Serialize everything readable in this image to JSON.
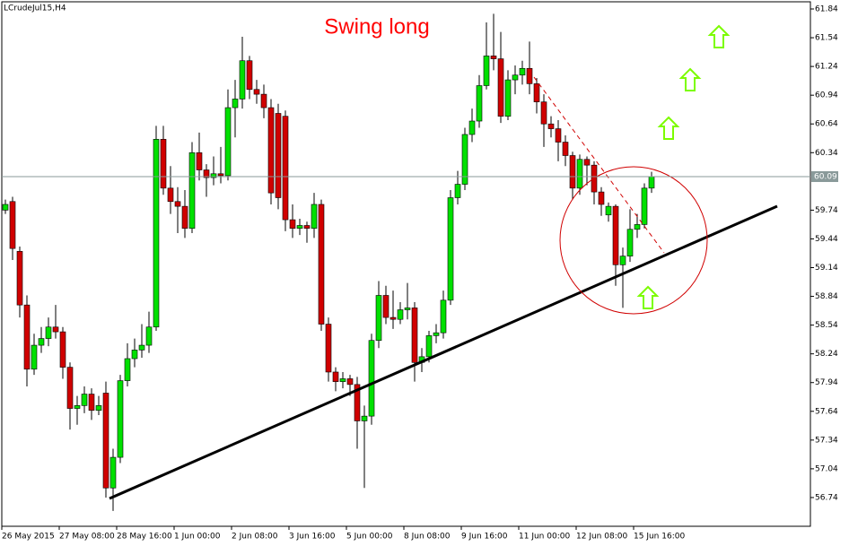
{
  "chart_data": {
    "type": "candlestick",
    "symbol": "LCrudeJul15,H4",
    "title": "Swing long",
    "categories": [
      "26 May 2015",
      null,
      null,
      null,
      null,
      null,
      null,
      null,
      "27 May 08:00",
      null,
      null,
      null,
      null,
      null,
      null,
      null,
      "28 May 16:00",
      null,
      null,
      null,
      null,
      null,
      null,
      null,
      "1 Jun 00:00",
      null,
      null,
      null,
      null,
      null,
      null,
      null,
      "2 Jun 08:00",
      null,
      null,
      null,
      null,
      null,
      null,
      null,
      "3 Jun 16:00",
      null,
      null,
      null,
      null,
      null,
      null,
      null,
      "5 Jun 00:00",
      null,
      null,
      null,
      null,
      null,
      null,
      null,
      "8 Jun 08:00",
      null,
      null,
      null,
      null,
      null,
      null,
      null,
      "9 Jun 16:00",
      null,
      null,
      null,
      null,
      null,
      null,
      null,
      "11 Jun 00:00",
      null,
      null,
      null,
      null,
      null,
      null,
      null,
      "12 Jun 08:00",
      null,
      null,
      null,
      null,
      null,
      null,
      null,
      "15 Jun 16:00",
      null,
      null
    ],
    "open": [
      59.74,
      59.83,
      59.31,
      58.75,
      58.08,
      58.33,
      58.4,
      58.52,
      58.47,
      58.1,
      57.67,
      57.7,
      57.82,
      57.65,
      57.83,
      56.84,
      57.16,
      57.96,
      58.19,
      58.28,
      58.33,
      58.52,
      60.48,
      59.97,
      59.83,
      59.78,
      59.55,
      60.34,
      60.16,
      60.08,
      60.12,
      60.1,
      60.81,
      60.9,
      61.3,
      61.0,
      60.95,
      60.81,
      60.75,
      60.72,
      59.64,
      59.55,
      59.58,
      59.55,
      59.8,
      58.55,
      58.05,
      57.95,
      57.98,
      57.92,
      57.54,
      57.59,
      58.38,
      58.85,
      58.62,
      58.6,
      58.7,
      58.72,
      58.15,
      58.21,
      58.43,
      58.46,
      58.8,
      59.87,
      60.01,
      60.53,
      60.67,
      61.04,
      61.35,
      61.32,
      60.72,
      61.1,
      61.15,
      61.22,
      61.06,
      60.87,
      60.64,
      60.59,
      60.45,
      60.31,
      59.97,
      60.27,
      60.21,
      59.93,
      59.69,
      59.78,
      59.17,
      59.26,
      59.54,
      59.59,
      59.97
    ],
    "high": [
      59.85,
      59.88,
      59.36,
      58.85,
      58.45,
      58.52,
      58.62,
      58.75,
      58.52,
      58.15,
      57.8,
      57.9,
      57.88,
      57.8,
      57.95,
      57.25,
      58.02,
      58.35,
      58.4,
      58.55,
      58.68,
      60.62,
      60.62,
      60.2,
      59.98,
      59.95,
      60.45,
      60.55,
      60.22,
      60.3,
      60.4,
      61.0,
      61.1,
      61.55,
      61.35,
      61.1,
      61.05,
      60.9,
      60.85,
      60.78,
      59.8,
      59.65,
      59.62,
      59.92,
      59.85,
      58.62,
      58.1,
      58.05,
      58.02,
      58.0,
      57.7,
      58.45,
      59.0,
      58.95,
      58.9,
      58.78,
      58.98,
      58.78,
      58.3,
      58.48,
      58.55,
      58.9,
      59.95,
      60.15,
      60.6,
      60.8,
      61.15,
      61.7,
      61.79,
      61.6,
      61.2,
      61.25,
      61.3,
      61.5,
      61.12,
      60.95,
      60.72,
      60.68,
      60.52,
      60.35,
      60.32,
      60.3,
      60.25,
      59.98,
      59.82,
      59.8,
      59.35,
      59.75,
      59.7,
      60.02,
      60.14
    ],
    "low": [
      59.7,
      59.22,
      58.62,
      57.9,
      58.02,
      58.25,
      58.32,
      58.4,
      57.98,
      57.45,
      57.5,
      57.62,
      57.55,
      57.6,
      56.74,
      56.6,
      57.1,
      57.9,
      58.1,
      58.2,
      58.25,
      58.48,
      59.9,
      59.7,
      59.5,
      59.45,
      59.5,
      60.05,
      59.88,
      60.0,
      60.02,
      60.05,
      60.5,
      60.8,
      60.9,
      60.85,
      60.7,
      59.8,
      59.75,
      59.52,
      59.45,
      59.48,
      59.4,
      59.45,
      58.48,
      57.95,
      57.85,
      57.88,
      57.8,
      57.25,
      56.84,
      57.5,
      58.3,
      58.55,
      58.5,
      58.55,
      58.6,
      57.95,
      58.05,
      58.15,
      58.35,
      58.4,
      58.75,
      59.8,
      59.95,
      60.45,
      60.6,
      61.0,
      61.2,
      60.65,
      60.68,
      60.95,
      61.05,
      60.95,
      60.75,
      60.4,
      60.5,
      60.25,
      60.2,
      59.85,
      59.9,
      60.0,
      59.8,
      59.68,
      59.62,
      58.95,
      58.72,
      59.2,
      59.45,
      59.55,
      59.92
    ],
    "close": [
      59.8,
      59.34,
      58.75,
      58.08,
      58.33,
      58.4,
      58.52,
      58.47,
      58.1,
      57.67,
      57.7,
      57.82,
      57.65,
      57.7,
      56.84,
      57.16,
      57.96,
      58.19,
      58.28,
      58.33,
      58.52,
      60.48,
      59.97,
      59.83,
      59.78,
      59.55,
      60.34,
      60.16,
      60.08,
      60.12,
      60.1,
      60.81,
      60.9,
      61.3,
      61.0,
      60.95,
      60.81,
      59.92,
      59.87,
      59.64,
      59.55,
      59.58,
      59.55,
      59.8,
      58.55,
      58.05,
      57.95,
      57.98,
      57.92,
      57.54,
      57.59,
      58.38,
      58.85,
      58.62,
      58.6,
      58.7,
      58.72,
      58.15,
      58.21,
      58.43,
      58.46,
      58.8,
      59.87,
      60.01,
      60.53,
      60.67,
      61.04,
      61.35,
      61.32,
      60.72,
      61.1,
      61.15,
      61.22,
      61.06,
      60.87,
      60.64,
      60.59,
      60.45,
      60.31,
      59.97,
      60.27,
      60.21,
      59.93,
      59.8,
      59.78,
      59.17,
      59.26,
      59.54,
      59.59,
      59.97,
      60.09
    ],
    "up_color": "#00e000",
    "down_color": "#d00000",
    "current_price": 60.09,
    "ylim": [
      56.44,
      61.915
    ],
    "yticks": [
      61.84,
      61.54,
      61.24,
      60.94,
      60.64,
      60.34,
      59.74,
      59.44,
      59.14,
      58.84,
      58.54,
      58.24,
      57.94,
      57.64,
      57.34,
      57.04,
      56.74
    ]
  }
}
